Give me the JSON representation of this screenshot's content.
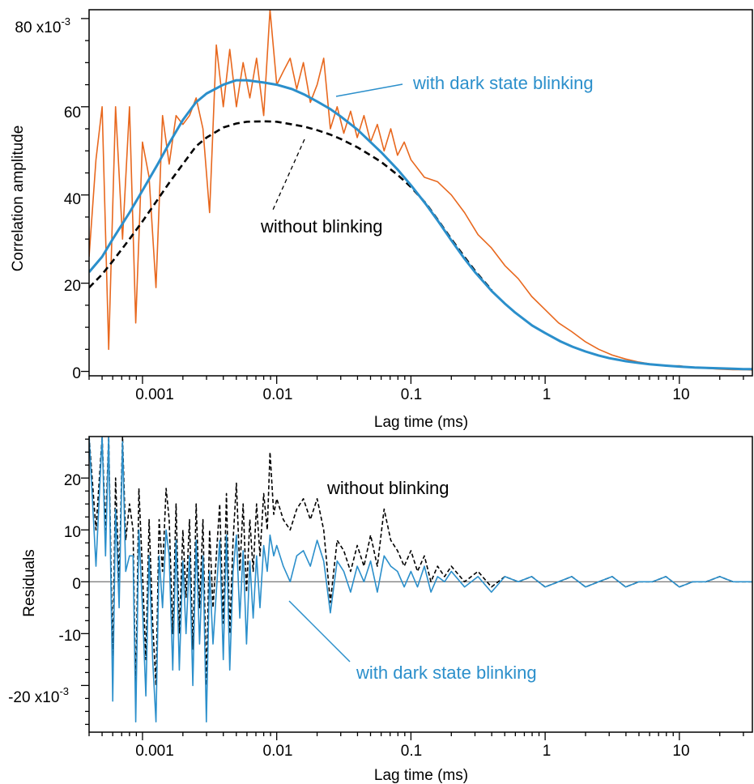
{
  "chart_data": [
    {
      "type": "line",
      "xlabel": "Lag time (ms)",
      "ylabel": "Correlation amplitude",
      "x_scale": "log",
      "xlim": [
        0.0004,
        35
      ],
      "ylim": [
        -0.001,
        0.082
      ],
      "x_tick_labels": [
        "0.001",
        "0.01",
        "0.1",
        "1",
        "10"
      ],
      "y_tick_labels": [
        "0",
        "20",
        "40",
        "60",
        "80 x10"
      ],
      "y_tick_exponent": "-3",
      "grid": false,
      "annotations": [
        "with dark state blinking",
        "without blinking"
      ],
      "colors": {
        "data": "#e8681e",
        "fit": "#2b8fcb",
        "fit_no_blink": "#000000"
      },
      "series": [
        {
          "role": "data",
          "x": [
            0.0004,
            0.00045,
            0.0005,
            0.00056,
            0.00063,
            0.00071,
            0.0008,
            0.00089,
            0.001,
            0.00112,
            0.00126,
            0.00141,
            0.00158,
            0.00178,
            0.002,
            0.00224,
            0.00251,
            0.00282,
            0.00316,
            0.00355,
            0.004,
            0.00447,
            0.00501,
            0.00562,
            0.00631,
            0.00708,
            0.008,
            0.00891,
            0.01,
            0.0112,
            0.0126,
            0.0141,
            0.0158,
            0.0178,
            0.02,
            0.0224,
            0.0251,
            0.0282,
            0.0316,
            0.0355,
            0.0398,
            0.0447,
            0.0501,
            0.0562,
            0.0631,
            0.0708,
            0.0794,
            0.0891,
            0.1,
            0.126,
            0.158,
            0.2,
            0.251,
            0.316,
            0.398,
            0.501,
            0.631,
            0.794,
            1.0,
            1.26,
            1.58,
            2.0,
            2.51,
            3.16,
            3.98,
            5.01,
            6.31,
            7.94,
            10.0,
            12.6,
            15.8,
            20.0,
            25.1,
            31.6,
            35.0
          ],
          "y": [
            0.026,
            0.048,
            0.06,
            0.005,
            0.06,
            0.03,
            0.06,
            0.011,
            0.052,
            0.044,
            0.019,
            0.058,
            0.047,
            0.058,
            0.056,
            0.058,
            0.062,
            0.055,
            0.036,
            0.074,
            0.06,
            0.073,
            0.06,
            0.07,
            0.062,
            0.071,
            0.058,
            0.082,
            0.065,
            0.068,
            0.071,
            0.064,
            0.07,
            0.061,
            0.065,
            0.071,
            0.055,
            0.06,
            0.054,
            0.059,
            0.053,
            0.058,
            0.052,
            0.056,
            0.05,
            0.055,
            0.049,
            0.052,
            0.048,
            0.044,
            0.043,
            0.04,
            0.036,
            0.031,
            0.028,
            0.024,
            0.021,
            0.017,
            0.014,
            0.011,
            0.009,
            0.0067,
            0.005,
            0.0037,
            0.0028,
            0.0021,
            0.0016,
            0.0012,
            0.0013,
            0.0008,
            0.0007,
            0.0005,
            0.0004,
            0.0004,
            0.0003
          ]
        },
        {
          "role": "fit",
          "x": [
            0.0004,
            0.0005,
            0.0006,
            0.0008,
            0.001,
            0.0013,
            0.0016,
            0.002,
            0.0025,
            0.003,
            0.004,
            0.005,
            0.006,
            0.008,
            0.01,
            0.013,
            0.016,
            0.02,
            0.025,
            0.03,
            0.04,
            0.05,
            0.06,
            0.08,
            0.1,
            0.13,
            0.16,
            0.2,
            0.25,
            0.3,
            0.4,
            0.5,
            0.6,
            0.8,
            1.0,
            1.3,
            1.6,
            2.0,
            2.5,
            3.0,
            4.0,
            5.0,
            6.0,
            8.0,
            10.0,
            13.0,
            16.0,
            20.0,
            25.0,
            30.0,
            35.0
          ],
          "y": [
            0.0225,
            0.026,
            0.03,
            0.036,
            0.041,
            0.047,
            0.052,
            0.057,
            0.061,
            0.063,
            0.065,
            0.066,
            0.066,
            0.0655,
            0.065,
            0.064,
            0.0628,
            0.0612,
            0.0595,
            0.0578,
            0.0548,
            0.052,
            0.0497,
            0.0457,
            0.0422,
            0.0378,
            0.034,
            0.0297,
            0.0256,
            0.0225,
            0.0182,
            0.0154,
            0.0133,
            0.0104,
            0.0087,
            0.0068,
            0.0056,
            0.0045,
            0.0036,
            0.003,
            0.0023,
            0.0019,
            0.0016,
            0.0013,
            0.0011,
            0.0009,
            0.0008,
            0.0007,
            0.0006,
            0.0005,
            0.0005
          ]
        },
        {
          "role": "fit_no_blink",
          "x": [
            0.0004,
            0.0005,
            0.0006,
            0.0008,
            0.001,
            0.0013,
            0.0016,
            0.002,
            0.0025,
            0.003,
            0.004,
            0.005,
            0.006,
            0.008,
            0.01,
            0.013,
            0.016,
            0.02,
            0.025,
            0.03,
            0.04,
            0.05,
            0.06,
            0.08,
            0.1,
            0.13,
            0.16,
            0.2,
            0.25,
            0.3,
            0.4
          ],
          "y": [
            0.019,
            0.022,
            0.025,
            0.03,
            0.034,
            0.039,
            0.043,
            0.047,
            0.051,
            0.053,
            0.0553,
            0.0562,
            0.0566,
            0.0567,
            0.0566,
            0.056,
            0.0555,
            0.0547,
            0.0537,
            0.0527,
            0.0508,
            0.049,
            0.0475,
            0.0445,
            0.0418,
            0.038,
            0.0342,
            0.03,
            0.026,
            0.0228,
            0.0184
          ]
        }
      ]
    },
    {
      "type": "line",
      "xlabel": "Lag time (ms)",
      "ylabel": "Residuals",
      "x_scale": "log",
      "xlim": [
        0.0004,
        35
      ],
      "ylim": [
        -0.029,
        0.028
      ],
      "x_tick_labels": [
        "0.001",
        "0.01",
        "0.1",
        "1",
        "10"
      ],
      "y_tick_labels": [
        "-20 x10",
        "-10",
        "0",
        "10",
        "20"
      ],
      "y_tick_exponent": "-3",
      "grid": false,
      "annotations": [
        "without blinking",
        "with dark state blinking"
      ],
      "colors": {
        "with_blinking": "#2b8fcb",
        "without_blinking": "#000000",
        "zero_line": "#555555"
      },
      "series": [
        {
          "role": "with_blinking",
          "x": [
            0.0004,
            0.00045,
            0.0005,
            0.00053,
            0.00056,
            0.0006,
            0.00063,
            0.00067,
            0.00071,
            0.00075,
            0.0008,
            0.00085,
            0.00089,
            0.00094,
            0.001,
            0.00106,
            0.00112,
            0.00119,
            0.00126,
            0.00133,
            0.00141,
            0.0015,
            0.00158,
            0.00168,
            0.00178,
            0.00188,
            0.002,
            0.00211,
            0.00224,
            0.00237,
            0.00251,
            0.00266,
            0.00282,
            0.00299,
            0.00316,
            0.00335,
            0.00355,
            0.00376,
            0.004,
            0.00422,
            0.00447,
            0.00473,
            0.00501,
            0.00531,
            0.00562,
            0.00596,
            0.00631,
            0.00668,
            0.00708,
            0.0075,
            0.008,
            0.0085,
            0.00891,
            0.0095,
            0.01,
            0.0112,
            0.0126,
            0.0141,
            0.0158,
            0.0178,
            0.02,
            0.0224,
            0.0251,
            0.0282,
            0.0316,
            0.0355,
            0.0398,
            0.0447,
            0.0501,
            0.0562,
            0.0631,
            0.0708,
            0.0794,
            0.0891,
            0.1,
            0.112,
            0.126,
            0.141,
            0.158,
            0.178,
            0.2,
            0.251,
            0.316,
            0.398,
            0.501,
            0.631,
            0.794,
            1.0,
            1.26,
            1.58,
            2.0,
            2.51,
            3.16,
            3.98,
            5.01,
            6.31,
            7.94,
            10.0,
            12.6,
            15.8,
            20.0,
            25.1,
            31.6,
            35.0
          ],
          "y": [
            0.028,
            0.003,
            0.028,
            0.005,
            0.028,
            -0.023,
            0.014,
            -0.005,
            0.027,
            0.002,
            0.005,
            0.005,
            -0.027,
            0.01,
            -0.005,
            -0.022,
            0.005,
            -0.015,
            -0.027,
            0.005,
            -0.005,
            0.01,
            0.005,
            -0.017,
            0.008,
            -0.017,
            0.004,
            -0.01,
            0.005,
            -0.02,
            0.008,
            -0.012,
            0.005,
            -0.027,
            0.002,
            -0.012,
            -0.002,
            0.008,
            -0.015,
            0.009,
            -0.017,
            0.002,
            0.009,
            -0.007,
            0.006,
            -0.012,
            0.004,
            -0.007,
            0.005,
            -0.005,
            0.007,
            0.002,
            0.009,
            0.005,
            0.007,
            0.003,
            0.0,
            0.005,
            0.006,
            0.003,
            0.008,
            0.004,
            -0.006,
            0.004,
            0.002,
            -0.002,
            0.003,
            0.0,
            0.004,
            -0.002,
            0.005,
            0.003,
            0.002,
            -0.001,
            0.002,
            -0.001,
            0.003,
            -0.002,
            0.001,
            0.0,
            0.002,
            -0.001,
            0.001,
            -0.002,
            0.001,
            0.0,
            0.001,
            -0.001,
            0.0,
            0.001,
            -0.001,
            0.0,
            0.001,
            -0.001,
            0.0,
            0.0,
            0.001,
            -0.001,
            0.0,
            0.0,
            0.001,
            0.0,
            0.0,
            0.0
          ]
        },
        {
          "role": "without_blinking",
          "x": [
            0.0004,
            0.00045,
            0.0005,
            0.00053,
            0.00056,
            0.0006,
            0.00063,
            0.00067,
            0.00071,
            0.00075,
            0.0008,
            0.00085,
            0.00089,
            0.00094,
            0.001,
            0.00106,
            0.00112,
            0.00119,
            0.00126,
            0.00133,
            0.00141,
            0.0015,
            0.00158,
            0.00168,
            0.00178,
            0.00188,
            0.002,
            0.00211,
            0.00224,
            0.00237,
            0.00251,
            0.00266,
            0.00282,
            0.00299,
            0.00316,
            0.00335,
            0.00355,
            0.00376,
            0.004,
            0.00422,
            0.00447,
            0.00473,
            0.00501,
            0.00531,
            0.00562,
            0.00596,
            0.00631,
            0.00668,
            0.00708,
            0.0075,
            0.008,
            0.0085,
            0.00891,
            0.0095,
            0.01,
            0.0112,
            0.0126,
            0.0141,
            0.0158,
            0.0178,
            0.02,
            0.0224,
            0.0251,
            0.0282,
            0.0316,
            0.0355,
            0.0398,
            0.0447,
            0.0501,
            0.0562,
            0.0631,
            0.0708,
            0.0794,
            0.0891,
            0.1,
            0.112,
            0.126,
            0.141,
            0.158,
            0.178,
            0.2,
            0.251,
            0.316,
            0.398,
            0.501,
            0.631,
            0.794,
            1.0,
            1.26,
            1.58,
            2.0,
            2.51,
            3.16,
            3.98,
            5.01,
            6.31,
            7.94,
            10.0,
            12.6,
            15.8,
            20.0,
            25.1,
            31.6,
            35.0
          ],
          "y": [
            0.028,
            0.01,
            0.028,
            0.01,
            0.028,
            -0.015,
            0.02,
            0.0,
            0.028,
            0.008,
            0.015,
            0.01,
            -0.022,
            0.018,
            0.002,
            -0.015,
            0.012,
            -0.008,
            -0.02,
            0.012,
            0.002,
            0.018,
            0.012,
            -0.01,
            0.015,
            -0.01,
            0.01,
            -0.003,
            0.012,
            -0.013,
            0.015,
            -0.005,
            0.012,
            -0.02,
            0.01,
            -0.005,
            0.005,
            0.015,
            -0.008,
            0.017,
            -0.01,
            0.008,
            0.019,
            0.002,
            0.015,
            -0.002,
            0.012,
            0.002,
            0.015,
            0.005,
            0.017,
            0.01,
            0.025,
            0.013,
            0.016,
            0.012,
            0.01,
            0.014,
            0.016,
            0.012,
            0.016,
            0.01,
            -0.004,
            0.008,
            0.006,
            0.002,
            0.007,
            0.003,
            0.009,
            0.003,
            0.014,
            0.008,
            0.006,
            0.003,
            0.006,
            0.002,
            0.005,
            0.0,
            0.003,
            0.001,
            0.003,
            0.0,
            0.002,
            -0.001,
            0.001,
            0.0,
            0.001,
            -0.001,
            0.0,
            0.001,
            -0.001,
            0.0,
            0.001,
            -0.001,
            0.0,
            0.0,
            0.001,
            -0.001,
            0.0,
            0.0,
            0.001,
            0.0,
            0.0,
            0.0
          ]
        }
      ]
    }
  ]
}
